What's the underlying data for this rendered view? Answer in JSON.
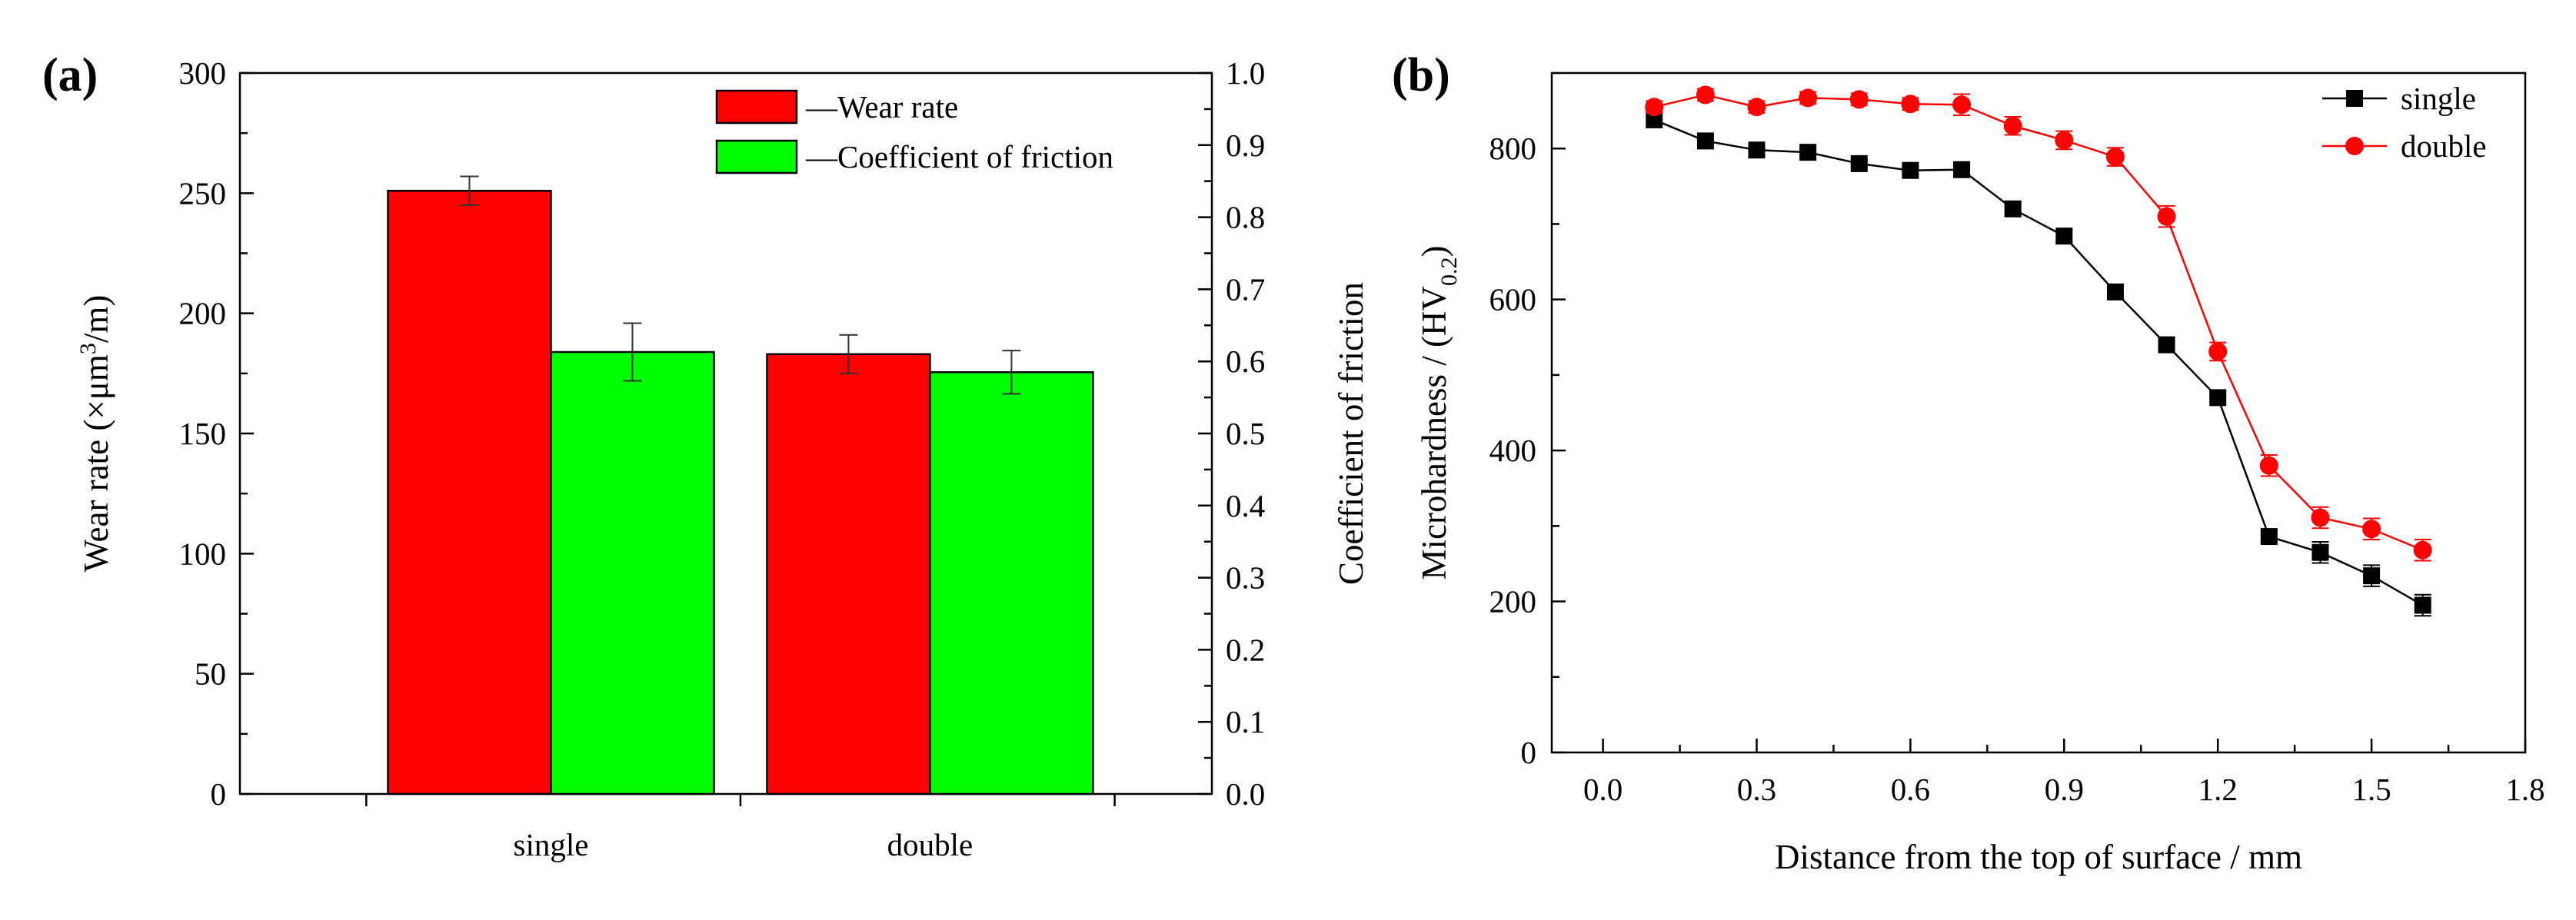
{
  "chart_data": [
    {
      "panel": "(a)",
      "type": "bar",
      "categories": [
        "single",
        "double"
      ],
      "series": [
        {
          "name": "—Wear rate",
          "axis": "left",
          "color": "#ff0000",
          "values": [
            251,
            183
          ],
          "errors": [
            6,
            8
          ]
        },
        {
          "name": "—Coefficient of friction",
          "axis": "right",
          "color": "#00ff00",
          "values": [
            0.613,
            0.585
          ],
          "errors": [
            0.04,
            0.03
          ]
        }
      ],
      "ylabel_left": {
        "main": "Wear rate (×μm",
        "sup": "3",
        "tail": "/m)"
      },
      "ylabel_right": "Coefficient of friction",
      "ylim_left": [
        0,
        300
      ],
      "yticks_left": [
        "0",
        "50",
        "100",
        "150",
        "200",
        "250",
        "300"
      ],
      "ylim_right": [
        0,
        1.0
      ],
      "yticks_right": [
        "0.0",
        "0.1",
        "0.2",
        "0.3",
        "0.4",
        "0.5",
        "0.6",
        "0.7",
        "0.8",
        "0.9",
        "1.0"
      ],
      "legend_position": "top-right"
    },
    {
      "panel": "(b)",
      "type": "line",
      "xlabel": "Distance from the top of surface / mm",
      "ylabel": {
        "main": "Microhardness / (HV",
        "sub": "0.2",
        "tail": ")"
      },
      "xlim": [
        -0.1,
        1.8
      ],
      "xticks": [
        "0.0",
        "0.3",
        "0.6",
        "0.9",
        "1.2",
        "1.5",
        "1.8"
      ],
      "ylim": [
        0,
        900
      ],
      "yticks": [
        "0",
        "200",
        "400",
        "600",
        "800"
      ],
      "legend_position": "top-right",
      "series": [
        {
          "name": "single",
          "color": "#000000",
          "marker": "square",
          "x": [
            0.1,
            0.2,
            0.3,
            0.4,
            0.5,
            0.6,
            0.7,
            0.8,
            0.9,
            1.0,
            1.1,
            1.2,
            1.3,
            1.4,
            1.5,
            1.6
          ],
          "y": [
            838,
            810,
            798,
            795,
            780,
            771,
            772,
            720,
            684,
            610,
            540,
            470,
            286,
            265,
            234,
            195
          ],
          "err": [
            6,
            5,
            5,
            5,
            5,
            5,
            8,
            8,
            8,
            6,
            6,
            8,
            8,
            14,
            14,
            14
          ]
        },
        {
          "name": "double",
          "color": "#ff0000",
          "marker": "circle",
          "x": [
            0.1,
            0.2,
            0.3,
            0.4,
            0.5,
            0.6,
            0.7,
            0.8,
            0.9,
            1.0,
            1.1,
            1.2,
            1.3,
            1.4,
            1.5,
            1.6
          ],
          "y": [
            855,
            871,
            855,
            867,
            865,
            859,
            858,
            830,
            811,
            789,
            710,
            531,
            380,
            311,
            296,
            268
          ],
          "err": [
            8,
            8,
            8,
            8,
            8,
            8,
            14,
            12,
            12,
            12,
            14,
            12,
            14,
            14,
            14,
            14
          ]
        }
      ]
    }
  ]
}
